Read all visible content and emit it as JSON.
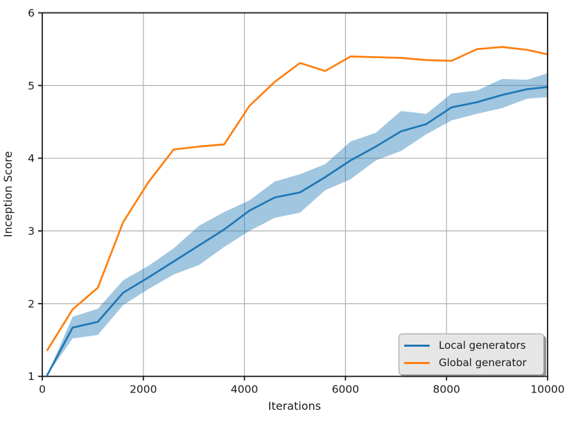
{
  "chart_data": {
    "type": "line",
    "title": "",
    "xlabel": "Iterations",
    "ylabel": "Inception Score",
    "xlim": [
      0,
      10000
    ],
    "ylim": [
      1,
      6
    ],
    "x_ticks": [
      0,
      2000,
      4000,
      6000,
      8000,
      10000
    ],
    "y_ticks": [
      1,
      2,
      3,
      4,
      5,
      6
    ],
    "grid": true,
    "grid_color": "#b0b0b0",
    "axis_color": "#1c1c1c",
    "background_color": "#ffffff",
    "legend_position": "lower right",
    "x": [
      100,
      600,
      1100,
      1600,
      2100,
      2600,
      3100,
      3600,
      4100,
      4600,
      5100,
      5600,
      6100,
      6600,
      7100,
      7600,
      8100,
      8600,
      9100,
      9600,
      10000
    ],
    "series": [
      {
        "name": "Local generators",
        "color": "#1f77b4",
        "values": [
          1.02,
          1.67,
          1.75,
          2.15,
          2.36,
          2.58,
          2.8,
          3.02,
          3.28,
          3.46,
          3.53,
          3.74,
          3.97,
          4.16,
          4.37,
          4.47,
          4.7,
          4.77,
          4.87,
          4.95,
          4.98
        ],
        "band_upper": [
          1.02,
          1.82,
          1.93,
          2.32,
          2.52,
          2.76,
          3.07,
          3.26,
          3.42,
          3.68,
          3.78,
          3.92,
          4.23,
          4.35,
          4.65,
          4.61,
          4.89,
          4.93,
          5.09,
          5.08,
          5.17
        ],
        "band_lower": [
          1.02,
          1.52,
          1.57,
          1.98,
          2.2,
          2.4,
          2.53,
          2.78,
          3.0,
          3.18,
          3.25,
          3.56,
          3.71,
          3.97,
          4.1,
          4.33,
          4.52,
          4.61,
          4.69,
          4.82,
          4.84
        ],
        "band_opacity": 0.42
      },
      {
        "name": "Global generator",
        "color": "#ff7f0e",
        "values": [
          1.36,
          1.92,
          2.22,
          3.12,
          3.67,
          4.12,
          4.16,
          4.19,
          4.72,
          5.05,
          5.31,
          5.2,
          5.4,
          5.39,
          5.38,
          5.35,
          5.34,
          5.5,
          5.53,
          5.49,
          5.43
        ]
      }
    ]
  },
  "legend": {
    "items": [
      {
        "label": "Local generators",
        "color": "#1f77b4"
      },
      {
        "label": "Global generator",
        "color": "#ff7f0e"
      }
    ]
  },
  "axes": {
    "xlabel": "Iterations",
    "ylabel": "Inception Score"
  }
}
